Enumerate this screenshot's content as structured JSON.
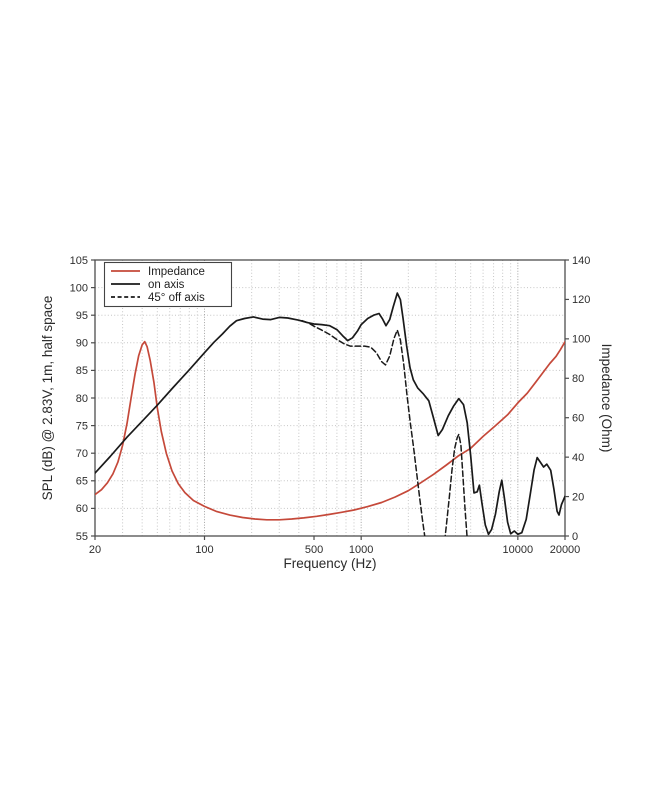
{
  "chart_data": {
    "type": "line",
    "title": "",
    "x_axis": {
      "label": "Frequency (Hz)",
      "scale": "log",
      "min": 20,
      "max": 20000,
      "ticks": [
        20,
        100,
        500,
        1000,
        10000,
        20000
      ]
    },
    "y_left": {
      "label": "SPL (dB) @ 2.83V, 1m, half space",
      "min": 55,
      "max": 105,
      "ticks": [
        55,
        60,
        65,
        70,
        75,
        80,
        85,
        90,
        95,
        100,
        105
      ]
    },
    "y_right": {
      "label": "Impedance (Ohm)",
      "min": 0,
      "max": 140,
      "ticks": [
        0,
        20,
        40,
        60,
        80,
        100,
        120,
        140
      ]
    },
    "grid": "on",
    "legend": {
      "position": "top-left"
    },
    "colors": {
      "impedance": "#c5493a",
      "spl": "#1a1a1a",
      "frame": "#4d4d4d",
      "text": "#2e2e2e"
    },
    "series": [
      {
        "name": "Impedance",
        "axis": "right",
        "unit": "Ohm",
        "color": "#c5493a",
        "style": "solid",
        "segments": [
          [
            [
              20,
              21
            ],
            [
              22,
              23.5
            ],
            [
              24,
              27
            ],
            [
              26,
              31.5
            ],
            [
              28,
              37.5
            ],
            [
              30,
              46
            ],
            [
              32,
              57
            ],
            [
              34,
              70
            ],
            [
              36,
              82
            ],
            [
              38,
              91.5
            ],
            [
              40,
              97
            ],
            [
              41.5,
              98.6
            ],
            [
              43,
              96
            ],
            [
              45,
              89
            ],
            [
              47.5,
              78
            ],
            [
              50,
              65
            ],
            [
              53,
              53
            ],
            [
              57,
              42
            ],
            [
              62,
              33
            ],
            [
              68,
              26.5
            ],
            [
              75,
              22
            ],
            [
              85,
              18
            ],
            [
              100,
              15
            ],
            [
              120,
              12.4
            ],
            [
              145,
              10.6
            ],
            [
              175,
              9.4
            ],
            [
              210,
              8.6
            ],
            [
              250,
              8.2
            ],
            [
              300,
              8.2
            ],
            [
              360,
              8.6
            ],
            [
              430,
              9.2
            ],
            [
              520,
              10
            ],
            [
              620,
              10.9
            ],
            [
              750,
              12
            ],
            [
              900,
              13.2
            ],
            [
              1100,
              14.9
            ],
            [
              1350,
              17
            ],
            [
              1650,
              19.8
            ],
            [
              2000,
              23
            ],
            [
              2400,
              27
            ],
            [
              2900,
              31.3
            ],
            [
              3500,
              36
            ],
            [
              4200,
              40.8
            ],
            [
              5000,
              44.5
            ],
            [
              6000,
              50.5
            ],
            [
              7200,
              56
            ],
            [
              8600,
              61.5
            ],
            [
              10000,
              67.5
            ],
            [
              11500,
              72.5
            ],
            [
              13000,
              78
            ],
            [
              14500,
              83
            ],
            [
              16000,
              87.5
            ],
            [
              17500,
              91
            ],
            [
              18700,
              94.5
            ],
            [
              20000,
              98.5
            ]
          ]
        ]
      },
      {
        "name": "on axis",
        "axis": "left",
        "unit": "dB",
        "color": "#1a1a1a",
        "style": "solid",
        "segments": [
          [
            [
              20,
              66.4
            ],
            [
              25,
              69.4
            ],
            [
              32,
              72.9
            ],
            [
              40,
              75.8
            ],
            [
              50,
              78.7
            ],
            [
              63,
              81.9
            ],
            [
              80,
              85.1
            ],
            [
              100,
              88.2
            ],
            [
              115,
              90.1
            ],
            [
              130,
              91.6
            ],
            [
              145,
              93
            ],
            [
              160,
              94
            ],
            [
              180,
              94.4
            ],
            [
              205,
              94.7
            ],
            [
              235,
              94.3
            ],
            [
              265,
              94.2
            ],
            [
              300,
              94.6
            ],
            [
              340,
              94.5
            ],
            [
              400,
              94.1
            ],
            [
              450,
              93.7
            ],
            [
              500,
              93.4
            ],
            [
              560,
              93.3
            ],
            [
              630,
              93.1
            ],
            [
              700,
              92.4
            ],
            [
              760,
              91.3
            ],
            [
              820,
              90.4
            ],
            [
              880,
              90.9
            ],
            [
              950,
              92.2
            ],
            [
              1000,
              93.3
            ],
            [
              1100,
              94.4
            ],
            [
              1200,
              95
            ],
            [
              1300,
              95.3
            ],
            [
              1370,
              94.3
            ],
            [
              1440,
              93.1
            ],
            [
              1520,
              94.2
            ],
            [
              1600,
              96.5
            ],
            [
              1700,
              99
            ],
            [
              1780,
              97.8
            ],
            [
              1850,
              94.5
            ],
            [
              1950,
              89.5
            ],
            [
              2050,
              85.5
            ],
            [
              2150,
              83.3
            ],
            [
              2300,
              81.8
            ],
            [
              2500,
              80.7
            ],
            [
              2700,
              79.5
            ],
            [
              2900,
              76.3
            ],
            [
              3100,
              73.2
            ],
            [
              3300,
              74.3
            ],
            [
              3600,
              76.8
            ],
            [
              3900,
              78.6
            ],
            [
              4200,
              79.9
            ],
            [
              4500,
              78.8
            ],
            [
              4750,
              75.5
            ],
            [
              5000,
              69.5
            ],
            [
              5250,
              62.8
            ],
            [
              5500,
              63
            ],
            [
              5680,
              64.2
            ],
            [
              5900,
              61
            ],
            [
              6200,
              57
            ],
            [
              6500,
              55.3
            ],
            [
              6800,
              56.2
            ],
            [
              7200,
              59
            ],
            [
              7600,
              63
            ],
            [
              7900,
              65.1
            ],
            [
              8200,
              62
            ],
            [
              8600,
              57.5
            ],
            [
              9000,
              55.4
            ],
            [
              9500,
              55.9
            ],
            [
              10000,
              55.3
            ],
            [
              10600,
              55.6
            ],
            [
              11300,
              58
            ],
            [
              12000,
              62.5
            ],
            [
              12700,
              67
            ],
            [
              13300,
              69.2
            ],
            [
              13900,
              68.4
            ],
            [
              14600,
              67.5
            ],
            [
              15300,
              68
            ],
            [
              16200,
              66.9
            ],
            [
              17000,
              63.5
            ],
            [
              17800,
              59.5
            ],
            [
              18300,
              58.8
            ],
            [
              19000,
              60.7
            ],
            [
              20000,
              62.2
            ]
          ]
        ]
      },
      {
        "name": "45° off axis",
        "axis": "left",
        "unit": "dB",
        "color": "#1a1a1a",
        "style": "dashed",
        "segments": [
          [
            [
              420,
              94
            ],
            [
              460,
              93.6
            ],
            [
              500,
              93
            ],
            [
              560,
              92.3
            ],
            [
              630,
              91.5
            ],
            [
              700,
              90.6
            ],
            [
              780,
              89.8
            ],
            [
              850,
              89.4
            ],
            [
              950,
              89.4
            ],
            [
              1050,
              89.4
            ],
            [
              1150,
              89.2
            ],
            [
              1250,
              88.2
            ],
            [
              1350,
              86.6
            ],
            [
              1430,
              86
            ],
            [
              1520,
              87.6
            ],
            [
              1620,
              90.8
            ],
            [
              1700,
              92.3
            ],
            [
              1780,
              90.5
            ],
            [
              1870,
              86
            ],
            [
              1960,
              80.5
            ],
            [
              2060,
              75.5
            ],
            [
              2160,
              71
            ],
            [
              2260,
              66.5
            ],
            [
              2360,
              62
            ],
            [
              2460,
              58
            ],
            [
              2560,
              54.5
            ],
            [
              2650,
              51
            ],
            [
              2750,
              48
            ]
          ],
          [
            [
              3200,
              48
            ],
            [
              3350,
              52
            ],
            [
              3500,
              57
            ],
            [
              3650,
              62
            ],
            [
              3800,
              67
            ],
            [
              3950,
              70.8
            ],
            [
              4100,
              72.8
            ],
            [
              4200,
              73.4
            ],
            [
              4330,
              71.5
            ],
            [
              4450,
              66.5
            ],
            [
              4600,
              60
            ],
            [
              4750,
              54.5
            ],
            [
              4850,
              50
            ]
          ]
        ]
      }
    ]
  }
}
